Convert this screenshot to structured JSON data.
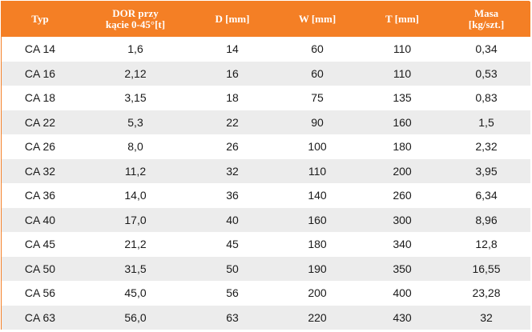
{
  "table": {
    "header_color": "#f47f25",
    "stripe_color": "#ececec",
    "headers": [
      "Typ",
      "DOR przy\nkącie 0-45°[t]",
      "D [mm]",
      "W [mm]",
      "T [mm]",
      "Masa\n[kg/szt.]"
    ],
    "rows": [
      [
        "CA 14",
        "1,6",
        "14",
        "60",
        "110",
        "0,34"
      ],
      [
        "CA 16",
        "2,12",
        "16",
        "60",
        "110",
        "0,53"
      ],
      [
        "CA 18",
        "3,15",
        "18",
        "75",
        "135",
        "0,83"
      ],
      [
        "CA 22",
        "5,3",
        "22",
        "90",
        "160",
        "1,5"
      ],
      [
        "CA 26",
        "8,0",
        "26",
        "100",
        "180",
        "2,32"
      ],
      [
        "CA 32",
        "11,2",
        "32",
        "110",
        "200",
        "3,95"
      ],
      [
        "CA 36",
        "14,0",
        "36",
        "140",
        "260",
        "6,34"
      ],
      [
        "CA 40",
        "17,0",
        "40",
        "160",
        "300",
        "8,96"
      ],
      [
        "CA 45",
        "21,2",
        "45",
        "180",
        "340",
        "12,8"
      ],
      [
        "CA 50",
        "31,5",
        "50",
        "190",
        "350",
        "16,55"
      ],
      [
        "CA 56",
        "45,0",
        "56",
        "200",
        "400",
        "23,28"
      ],
      [
        "CA 63",
        "56,0",
        "63",
        "220",
        "430",
        "32"
      ]
    ]
  }
}
